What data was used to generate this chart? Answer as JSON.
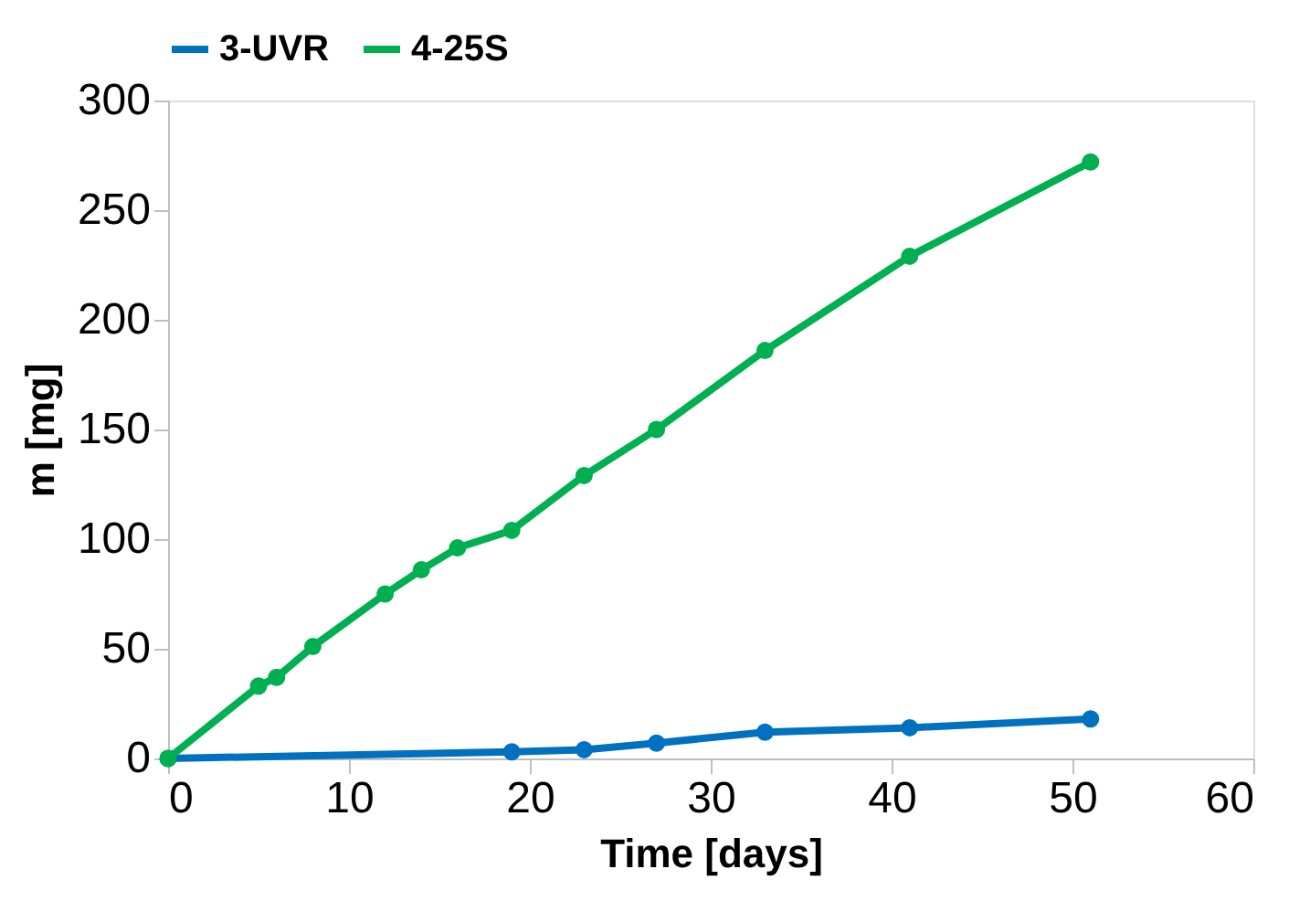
{
  "chart_data": {
    "type": "line",
    "xlabel": "Time [days]",
    "ylabel": "m [mg]",
    "xlim": [
      0,
      60
    ],
    "xticks": [
      0,
      10,
      20,
      30,
      40,
      50,
      60
    ],
    "ylim": [
      0,
      300
    ],
    "yticks": [
      0,
      50,
      100,
      150,
      200,
      250,
      300
    ],
    "grid": false,
    "legend": "top",
    "marker": "circle",
    "line_style": "solid",
    "series": [
      {
        "name": "3-UVR",
        "color": "#0070c0",
        "x": [
          0,
          19,
          23,
          27,
          33,
          41,
          51
        ],
        "values": [
          0,
          3,
          4,
          7,
          12,
          14,
          18
        ]
      },
      {
        "name": "4-25S",
        "color": "#00b050",
        "x": [
          0,
          5,
          6,
          8,
          12,
          14,
          16,
          19,
          23,
          27,
          33,
          41,
          51
        ],
        "values": [
          0,
          33,
          37,
          51,
          75,
          86,
          96,
          104,
          129,
          150,
          186,
          229,
          272
        ]
      }
    ]
  }
}
